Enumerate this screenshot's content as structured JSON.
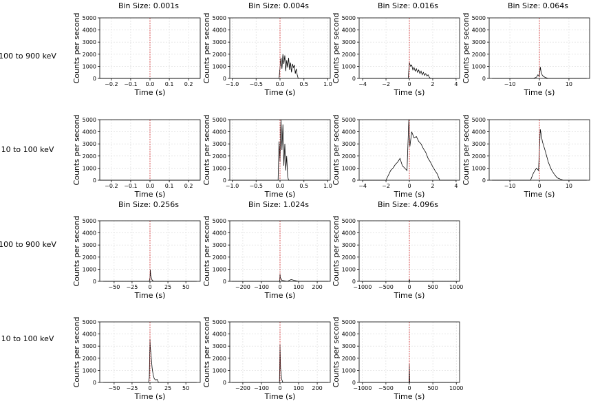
{
  "figure": {
    "column_titles": [
      "Bin Size: 0.001s",
      "Bin Size: 0.004s",
      "Bin Size: 0.016s",
      "Bin Size: 0.064s"
    ],
    "column_titles_row2": [
      "Bin Size: 0.256s",
      "Bin Size: 1.024s",
      "Bin Size: 4.096s"
    ],
    "row_labels": [
      "100 to 900 keV",
      "10 to 100 keV",
      "100 to 900 keV",
      "10 to 100 keV"
    ]
  },
  "chart_data": [
    {
      "type": "line",
      "title": "Bin Size: 0.001s",
      "band": "100 to 900 keV",
      "xlabel": "Time (s)",
      "ylabel": "Counts per second",
      "xlim": [
        -0.26,
        0.26
      ],
      "ylim": [
        0,
        5000
      ],
      "xticks": [
        -0.2,
        -0.1,
        0.0,
        0.1,
        0.2
      ],
      "xtick_labels": [
        "−0.2",
        "−0.1",
        "0.0",
        "0.1",
        "0.2"
      ],
      "yticks": [
        0,
        1000,
        2000,
        3000,
        4000,
        5000
      ],
      "grid": true,
      "marker_line_x": 0,
      "marker_color": "#d62728",
      "x": [
        -0.26,
        0.26
      ],
      "y": [
        0,
        0
      ]
    },
    {
      "type": "line",
      "title": "Bin Size: 0.004s",
      "band": "100 to 900 keV",
      "xlabel": "Time (s)",
      "ylabel": "Counts per second",
      "xlim": [
        -1.05,
        1.05
      ],
      "ylim": [
        0,
        5000
      ],
      "xticks": [
        -1.0,
        -0.5,
        0.0,
        0.5,
        1.0
      ],
      "xtick_labels": [
        "−1.0",
        "−0.5",
        "0.0",
        "0.5",
        "1.0"
      ],
      "yticks": [
        0,
        1000,
        2000,
        3000,
        4000,
        5000
      ],
      "grid": true,
      "marker_line_x": 0,
      "marker_color": "#d62728",
      "x": [
        -1.0,
        -0.02,
        0.0,
        0.02,
        0.04,
        0.06,
        0.08,
        0.1,
        0.12,
        0.14,
        0.16,
        0.18,
        0.2,
        0.22,
        0.24,
        0.26,
        0.28,
        0.3,
        0.32,
        0.34,
        0.36,
        0.38,
        1.0
      ],
      "y": [
        0,
        0,
        900,
        1700,
        800,
        2000,
        1200,
        1900,
        600,
        1500,
        900,
        1700,
        700,
        1300,
        500,
        1200,
        900,
        1100,
        400,
        800,
        300,
        0,
        0
      ]
    },
    {
      "type": "line",
      "title": "Bin Size: 0.016s",
      "band": "100 to 900 keV",
      "xlabel": "Time (s)",
      "ylabel": "Counts per second",
      "xlim": [
        -4.3,
        4.3
      ],
      "ylim": [
        0,
        5000
      ],
      "xticks": [
        -4,
        -2,
        0,
        2,
        4
      ],
      "xtick_labels": [
        "−4",
        "−2",
        "0",
        "2",
        "4"
      ],
      "yticks": [
        0,
        1000,
        2000,
        3000,
        4000,
        5000
      ],
      "grid": true,
      "marker_line_x": 0,
      "marker_color": "#d62728",
      "x": [
        -4.0,
        -0.1,
        0.0,
        0.1,
        0.2,
        0.3,
        0.4,
        0.5,
        0.6,
        0.7,
        0.8,
        0.9,
        1.0,
        1.1,
        1.2,
        1.3,
        1.4,
        1.5,
        1.6,
        1.7,
        1.8,
        4.0
      ],
      "y": [
        0,
        0,
        1300,
        1000,
        1100,
        700,
        900,
        600,
        800,
        500,
        700,
        400,
        600,
        300,
        500,
        250,
        400,
        200,
        300,
        100,
        0,
        0
      ]
    },
    {
      "type": "line",
      "title": "Bin Size: 0.064s",
      "band": "100 to 900 keV",
      "xlabel": "Time (s)",
      "ylabel": "Counts per second",
      "xlim": [
        -17,
        17
      ],
      "ylim": [
        0,
        5000
      ],
      "xticks": [
        -10,
        0,
        10
      ],
      "xtick_labels": [
        "−10",
        "0",
        "10"
      ],
      "yticks": [
        0,
        1000,
        2000,
        3000,
        4000,
        5000
      ],
      "grid": true,
      "marker_line_x": 0,
      "marker_color": "#d62728",
      "x": [
        -16,
        -2,
        -1,
        -0.5,
        0,
        0.3,
        0.6,
        1.0,
        1.5,
        2.0,
        3.0,
        16
      ],
      "y": [
        0,
        0,
        100,
        300,
        150,
        950,
        500,
        250,
        150,
        80,
        0,
        0
      ]
    },
    {
      "type": "line",
      "title": "",
      "band": "10 to 100 keV",
      "xlabel": "Time (s)",
      "ylabel": "Counts per second",
      "xlim": [
        -0.26,
        0.26
      ],
      "ylim": [
        0,
        5000
      ],
      "xticks": [
        -0.2,
        -0.1,
        0.0,
        0.1,
        0.2
      ],
      "xtick_labels": [
        "−0.2",
        "−0.1",
        "0.0",
        "0.1",
        "0.2"
      ],
      "yticks": [
        0,
        1000,
        2000,
        3000,
        4000,
        5000
      ],
      "grid": true,
      "marker_line_x": 0,
      "marker_color": "#d62728",
      "x": [
        -0.26,
        0.26
      ],
      "y": [
        0,
        0
      ]
    },
    {
      "type": "line",
      "title": "",
      "band": "10 to 100 keV",
      "xlabel": "Time (s)",
      "ylabel": "Counts per second",
      "xlim": [
        -1.05,
        1.05
      ],
      "ylim": [
        0,
        5000
      ],
      "xticks": [
        -1.0,
        -0.5,
        0.0,
        0.5,
        1.0
      ],
      "xtick_labels": [
        "−1.0",
        "−0.5",
        "0.0",
        "0.5",
        "1.0"
      ],
      "yticks": [
        0,
        1000,
        2000,
        3000,
        4000,
        5000
      ],
      "grid": true,
      "marker_line_x": 0,
      "marker_color": "#d62728",
      "x": [
        -1.0,
        -0.04,
        -0.02,
        0.0,
        0.02,
        0.04,
        0.06,
        0.08,
        0.1,
        0.12,
        0.14,
        0.16,
        0.18,
        1.0
      ],
      "y": [
        0,
        0,
        3200,
        1500,
        5000,
        2500,
        4600,
        1200,
        3000,
        800,
        2000,
        300,
        0,
        0
      ]
    },
    {
      "type": "line",
      "title": "",
      "band": "10 to 100 keV",
      "xlabel": "Time (s)",
      "ylabel": "Counts per second",
      "xlim": [
        -4.3,
        4.3
      ],
      "ylim": [
        0,
        5000
      ],
      "xticks": [
        -4,
        -2,
        0,
        2,
        4
      ],
      "xtick_labels": [
        "−4",
        "−2",
        "0",
        "2",
        "4"
      ],
      "yticks": [
        0,
        1000,
        2000,
        3000,
        4000,
        5000
      ],
      "grid": true,
      "marker_line_x": 0,
      "marker_color": "#d62728",
      "x": [
        -4.0,
        -2.0,
        -1.8,
        -1.6,
        -1.4,
        -1.2,
        -1.0,
        -0.8,
        -0.6,
        -0.4,
        -0.2,
        -0.05,
        0.05,
        0.2,
        0.4,
        0.6,
        0.8,
        1.0,
        1.2,
        1.4,
        1.6,
        1.8,
        2.0,
        2.2,
        2.4,
        2.6,
        4.0
      ],
      "y": [
        0,
        0,
        400,
        800,
        1000,
        1300,
        1500,
        1800,
        1200,
        1000,
        800,
        5000,
        2800,
        4000,
        3500,
        3600,
        3200,
        3000,
        2600,
        2300,
        1800,
        1500,
        1100,
        800,
        500,
        0,
        0
      ]
    },
    {
      "type": "line",
      "title": "",
      "band": "10 to 100 keV",
      "xlabel": "Time (s)",
      "ylabel": "Counts per second",
      "xlim": [
        -17,
        17
      ],
      "ylim": [
        0,
        5000
      ],
      "xticks": [
        -10,
        0,
        10
      ],
      "xtick_labels": [
        "−10",
        "0",
        "10"
      ],
      "yticks": [
        0,
        1000,
        2000,
        3000,
        4000,
        5000
      ],
      "grid": true,
      "marker_line_x": 0,
      "marker_color": "#d62728",
      "x": [
        -16,
        -3,
        -2,
        -1,
        -0.3,
        0.3,
        1.0,
        2.0,
        3.0,
        4.0,
        5.0,
        6.0,
        8.0,
        16
      ],
      "y": [
        0,
        0,
        600,
        1000,
        800,
        4200,
        3200,
        2400,
        1500,
        900,
        500,
        200,
        0,
        0
      ]
    },
    {
      "type": "line",
      "title": "Bin Size: 0.256s",
      "band": "100 to 900 keV",
      "xlabel": "Time (s)",
      "ylabel": "Counts per second",
      "xlim": [
        -70,
        70
      ],
      "ylim": [
        0,
        5000
      ],
      "xticks": [
        -50,
        -25,
        0,
        25,
        50
      ],
      "xtick_labels": [
        "−50",
        "−25",
        "0",
        "25",
        "50"
      ],
      "yticks": [
        0,
        1000,
        2000,
        3000,
        4000,
        5000
      ],
      "grid": true,
      "marker_line_x": 0,
      "marker_color": "#d62728",
      "x": [
        -65,
        -1,
        0,
        0.5,
        1,
        2,
        3,
        5,
        65
      ],
      "y": [
        0,
        0,
        300,
        950,
        500,
        250,
        100,
        0,
        0
      ]
    },
    {
      "type": "line",
      "title": "Bin Size: 1.024s",
      "band": "100 to 900 keV",
      "xlabel": "Time (s)",
      "ylabel": "Counts per second",
      "xlim": [
        -270,
        270
      ],
      "ylim": [
        0,
        5000
      ],
      "xticks": [
        -200,
        -100,
        0,
        100,
        200
      ],
      "xtick_labels": [
        "−200",
        "−100",
        "0",
        "100",
        "200"
      ],
      "yticks": [
        0,
        1000,
        2000,
        3000,
        4000,
        5000
      ],
      "grid": true,
      "marker_line_x": 0,
      "marker_color": "#d62728",
      "x": [
        -260,
        -2,
        0,
        2,
        10,
        40,
        60,
        80,
        100,
        260
      ],
      "y": [
        0,
        0,
        650,
        300,
        80,
        0,
        150,
        60,
        0,
        0
      ]
    },
    {
      "type": "line",
      "title": "Bin Size: 4.096s",
      "band": "100 to 900 keV",
      "xlabel": "Time (s)",
      "ylabel": "Counts per second",
      "xlim": [
        -1070,
        1070
      ],
      "ylim": [
        0,
        5000
      ],
      "xticks": [
        -1000,
        -500,
        0,
        500,
        1000
      ],
      "xtick_labels": [
        "−1000",
        "−500",
        "0",
        "500",
        "1000"
      ],
      "yticks": [
        0,
        1000,
        2000,
        3000,
        4000,
        5000
      ],
      "grid": true,
      "marker_line_x": 0,
      "marker_color": "#d62728",
      "x": [
        -1040,
        -8,
        0,
        8,
        1040
      ],
      "y": [
        0,
        0,
        220,
        0,
        0
      ]
    },
    {
      "type": "line",
      "title": "",
      "band": "10 to 100 keV",
      "xlabel": "Time (s)",
      "ylabel": "Counts per second",
      "xlim": [
        -70,
        70
      ],
      "ylim": [
        0,
        5000
      ],
      "xticks": [
        -50,
        -25,
        0,
        25,
        50
      ],
      "xtick_labels": [
        "−50",
        "−25",
        "0",
        "25",
        "50"
      ],
      "yticks": [
        0,
        1000,
        2000,
        3000,
        4000,
        5000
      ],
      "grid": true,
      "marker_line_x": 0,
      "marker_color": "#d62728",
      "x": [
        -65,
        -2,
        -1,
        0,
        0.5,
        1.5,
        3,
        4.5,
        6,
        8,
        10,
        12,
        65
      ],
      "y": [
        0,
        0,
        400,
        3600,
        2900,
        2200,
        1200,
        600,
        300,
        200,
        250,
        0,
        0
      ]
    },
    {
      "type": "line",
      "title": "",
      "band": "10 to 100 keV",
      "xlabel": "Time (s)",
      "ylabel": "Counts per second",
      "xlim": [
        -270,
        270
      ],
      "ylim": [
        0,
        5000
      ],
      "xticks": [
        -200,
        -100,
        0,
        100,
        200
      ],
      "xtick_labels": [
        "−200",
        "−100",
        "0",
        "100",
        "200"
      ],
      "yticks": [
        0,
        1000,
        2000,
        3000,
        4000,
        5000
      ],
      "grid": true,
      "marker_line_x": 0,
      "marker_color": "#d62728",
      "x": [
        -260,
        -3,
        0,
        3,
        8,
        15,
        260
      ],
      "y": [
        0,
        0,
        3100,
        1200,
        300,
        0,
        0
      ]
    },
    {
      "type": "line",
      "title": "",
      "band": "10 to 100 keV",
      "xlabel": "Time (s)",
      "ylabel": "Counts per second",
      "xlim": [
        -1070,
        1070
      ],
      "ylim": [
        0,
        5000
      ],
      "xticks": [
        -1000,
        -500,
        0,
        500,
        1000
      ],
      "xtick_labels": [
        "−1000",
        "−500",
        "0",
        "500",
        "1000"
      ],
      "yticks": [
        0,
        1000,
        2000,
        3000,
        4000,
        5000
      ],
      "grid": true,
      "marker_line_x": 0,
      "marker_color": "#d62728",
      "x": [
        -1040,
        -8,
        0,
        8,
        1040
      ],
      "y": [
        0,
        0,
        1500,
        0,
        0
      ]
    }
  ]
}
